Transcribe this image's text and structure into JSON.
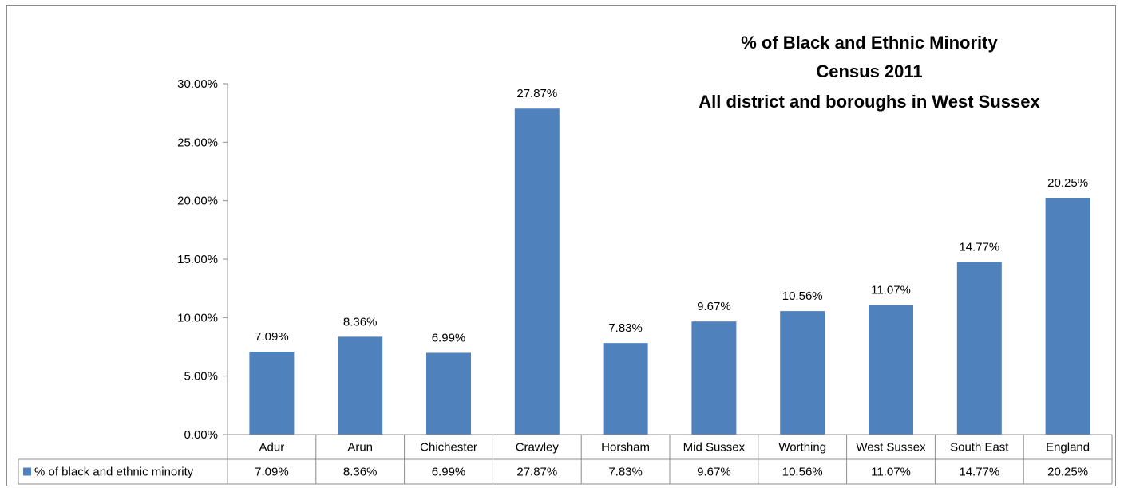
{
  "chart_data": {
    "type": "bar",
    "title": [
      "% of Black and Ethnic Minority",
      "Census 2011",
      "All district and boroughs in West Sussex"
    ],
    "categories": [
      "Adur",
      "Arun",
      "Chichester",
      "Crawley",
      "Horsham",
      "Mid Sussex",
      "Worthing",
      "West Sussex",
      "South East",
      "England"
    ],
    "series": [
      {
        "name": "% of black and ethnic minority",
        "values": [
          7.09,
          8.36,
          6.99,
          27.87,
          7.83,
          9.67,
          10.56,
          11.07,
          14.77,
          20.25
        ],
        "labels": [
          "7.09%",
          "8.36%",
          "6.99%",
          "27.87%",
          "7.83%",
          "9.67%",
          "10.56%",
          "11.07%",
          "14.77%",
          "20.25%"
        ],
        "color": "#4f81bd"
      }
    ],
    "ylim": [
      0,
      30
    ],
    "yticks": [
      0,
      5,
      10,
      15,
      20,
      25,
      30
    ],
    "ytick_labels": [
      "0.00%",
      "5.00%",
      "10.00%",
      "15.00%",
      "20.00%",
      "25.00%",
      "30.00%"
    ],
    "xlabel": "",
    "ylabel": "",
    "grid": false,
    "data_table": true,
    "legend_placement": "data-table-left"
  }
}
